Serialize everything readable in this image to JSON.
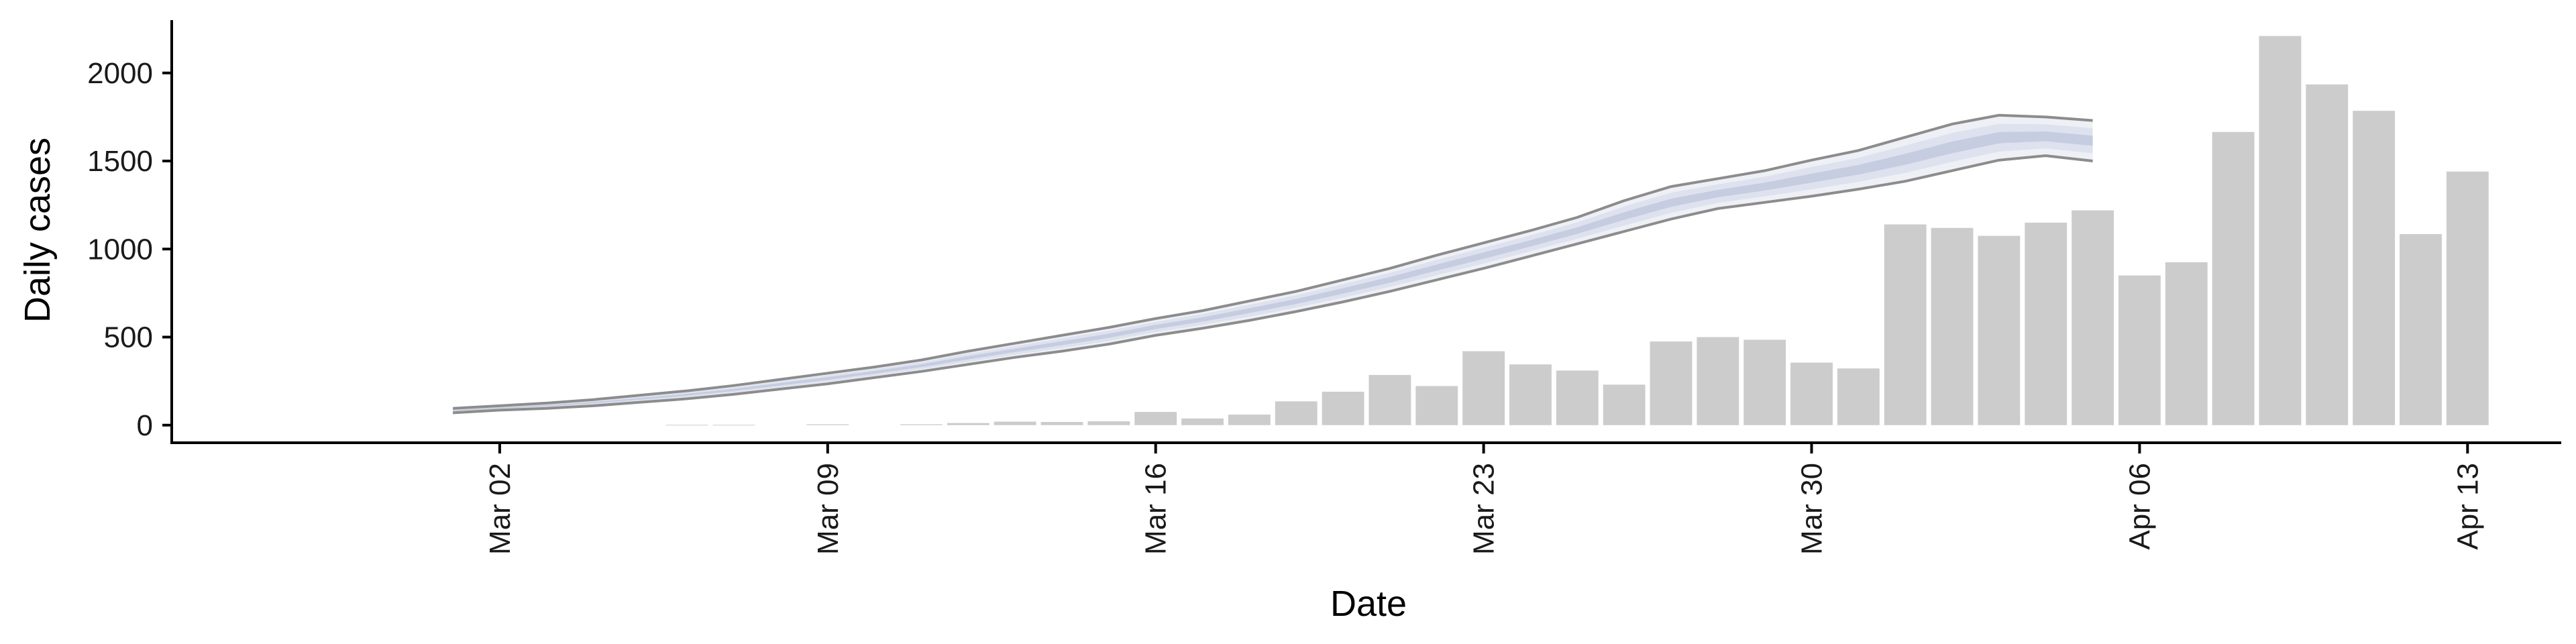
{
  "chart_data": {
    "type": "bar",
    "xlabel": "Date",
    "ylabel": "Daily cases",
    "x_range": [
      "2020-02-24",
      "2020-04-15"
    ],
    "ylim": [
      -100,
      2300
    ],
    "y_ticks": [
      0,
      500,
      1000,
      1500,
      2000
    ],
    "x_ticks": [
      {
        "date": "2020-03-02",
        "label": "Mar 02"
      },
      {
        "date": "2020-03-09",
        "label": "Mar 09"
      },
      {
        "date": "2020-03-16",
        "label": "Mar 16"
      },
      {
        "date": "2020-03-23",
        "label": "Mar 23"
      },
      {
        "date": "2020-03-30",
        "label": "Mar 30"
      },
      {
        "date": "2020-04-06",
        "label": "Apr 06"
      },
      {
        "date": "2020-04-13",
        "label": "Apr 13"
      }
    ],
    "grid": false,
    "legend": "none",
    "colors": {
      "bars": "#cccccc",
      "band_outer": "#eef0f6",
      "band_inner": "#dde2ee",
      "band_core": "#c6cde1",
      "band_line": "#8c8c8c"
    },
    "bars": {
      "name": "",
      "dates": [
        "2020-03-06",
        "2020-03-07",
        "2020-03-09",
        "2020-03-11",
        "2020-03-12",
        "2020-03-13",
        "2020-03-14",
        "2020-03-15",
        "2020-03-16",
        "2020-03-17",
        "2020-03-18",
        "2020-03-19",
        "2020-03-20",
        "2020-03-21",
        "2020-03-22",
        "2020-03-23",
        "2020-03-24",
        "2020-03-25",
        "2020-03-26",
        "2020-03-27",
        "2020-03-28",
        "2020-03-29",
        "2020-03-30",
        "2020-03-31",
        "2020-04-01",
        "2020-04-02",
        "2020-04-03",
        "2020-04-04",
        "2020-04-05",
        "2020-04-06",
        "2020-04-07",
        "2020-04-08",
        "2020-04-09",
        "2020-04-10",
        "2020-04-11",
        "2020-04-12",
        "2020-04-13"
      ],
      "values": [
        2,
        2,
        5,
        5,
        12,
        20,
        18,
        22,
        75,
        38,
        60,
        135,
        190,
        285,
        222,
        420,
        345,
        310,
        230,
        475,
        500,
        485,
        355,
        322,
        1140,
        1120,
        1075,
        1150,
        1220,
        850,
        925,
        1665,
        2210,
        1935,
        1785,
        1085,
        1440
      ]
    },
    "forecast_band": {
      "dates": [
        "2020-03-01",
        "2020-03-02",
        "2020-03-03",
        "2020-03-04",
        "2020-03-05",
        "2020-03-06",
        "2020-03-07",
        "2020-03-08",
        "2020-03-09",
        "2020-03-10",
        "2020-03-11",
        "2020-03-12",
        "2020-03-13",
        "2020-03-14",
        "2020-03-15",
        "2020-03-16",
        "2020-03-17",
        "2020-03-18",
        "2020-03-19",
        "2020-03-20",
        "2020-03-21",
        "2020-03-22",
        "2020-03-23",
        "2020-03-24",
        "2020-03-25",
        "2020-03-26",
        "2020-03-27",
        "2020-03-28",
        "2020-03-29",
        "2020-03-30",
        "2020-03-31",
        "2020-04-01",
        "2020-04-02",
        "2020-04-03",
        "2020-04-04",
        "2020-04-05"
      ],
      "lower": [
        70,
        85,
        95,
        110,
        130,
        150,
        175,
        205,
        235,
        270,
        305,
        345,
        385,
        420,
        460,
        510,
        550,
        595,
        645,
        700,
        760,
        825,
        890,
        960,
        1030,
        1100,
        1170,
        1230,
        1265,
        1300,
        1340,
        1385,
        1445,
        1505,
        1530,
        1500
      ],
      "upper": [
        95,
        110,
        125,
        145,
        170,
        195,
        225,
        260,
        295,
        330,
        370,
        420,
        465,
        510,
        555,
        605,
        650,
        705,
        760,
        825,
        890,
        965,
        1035,
        1105,
        1180,
        1275,
        1355,
        1400,
        1445,
        1505,
        1560,
        1635,
        1710,
        1760,
        1750,
        1730
      ]
    }
  }
}
